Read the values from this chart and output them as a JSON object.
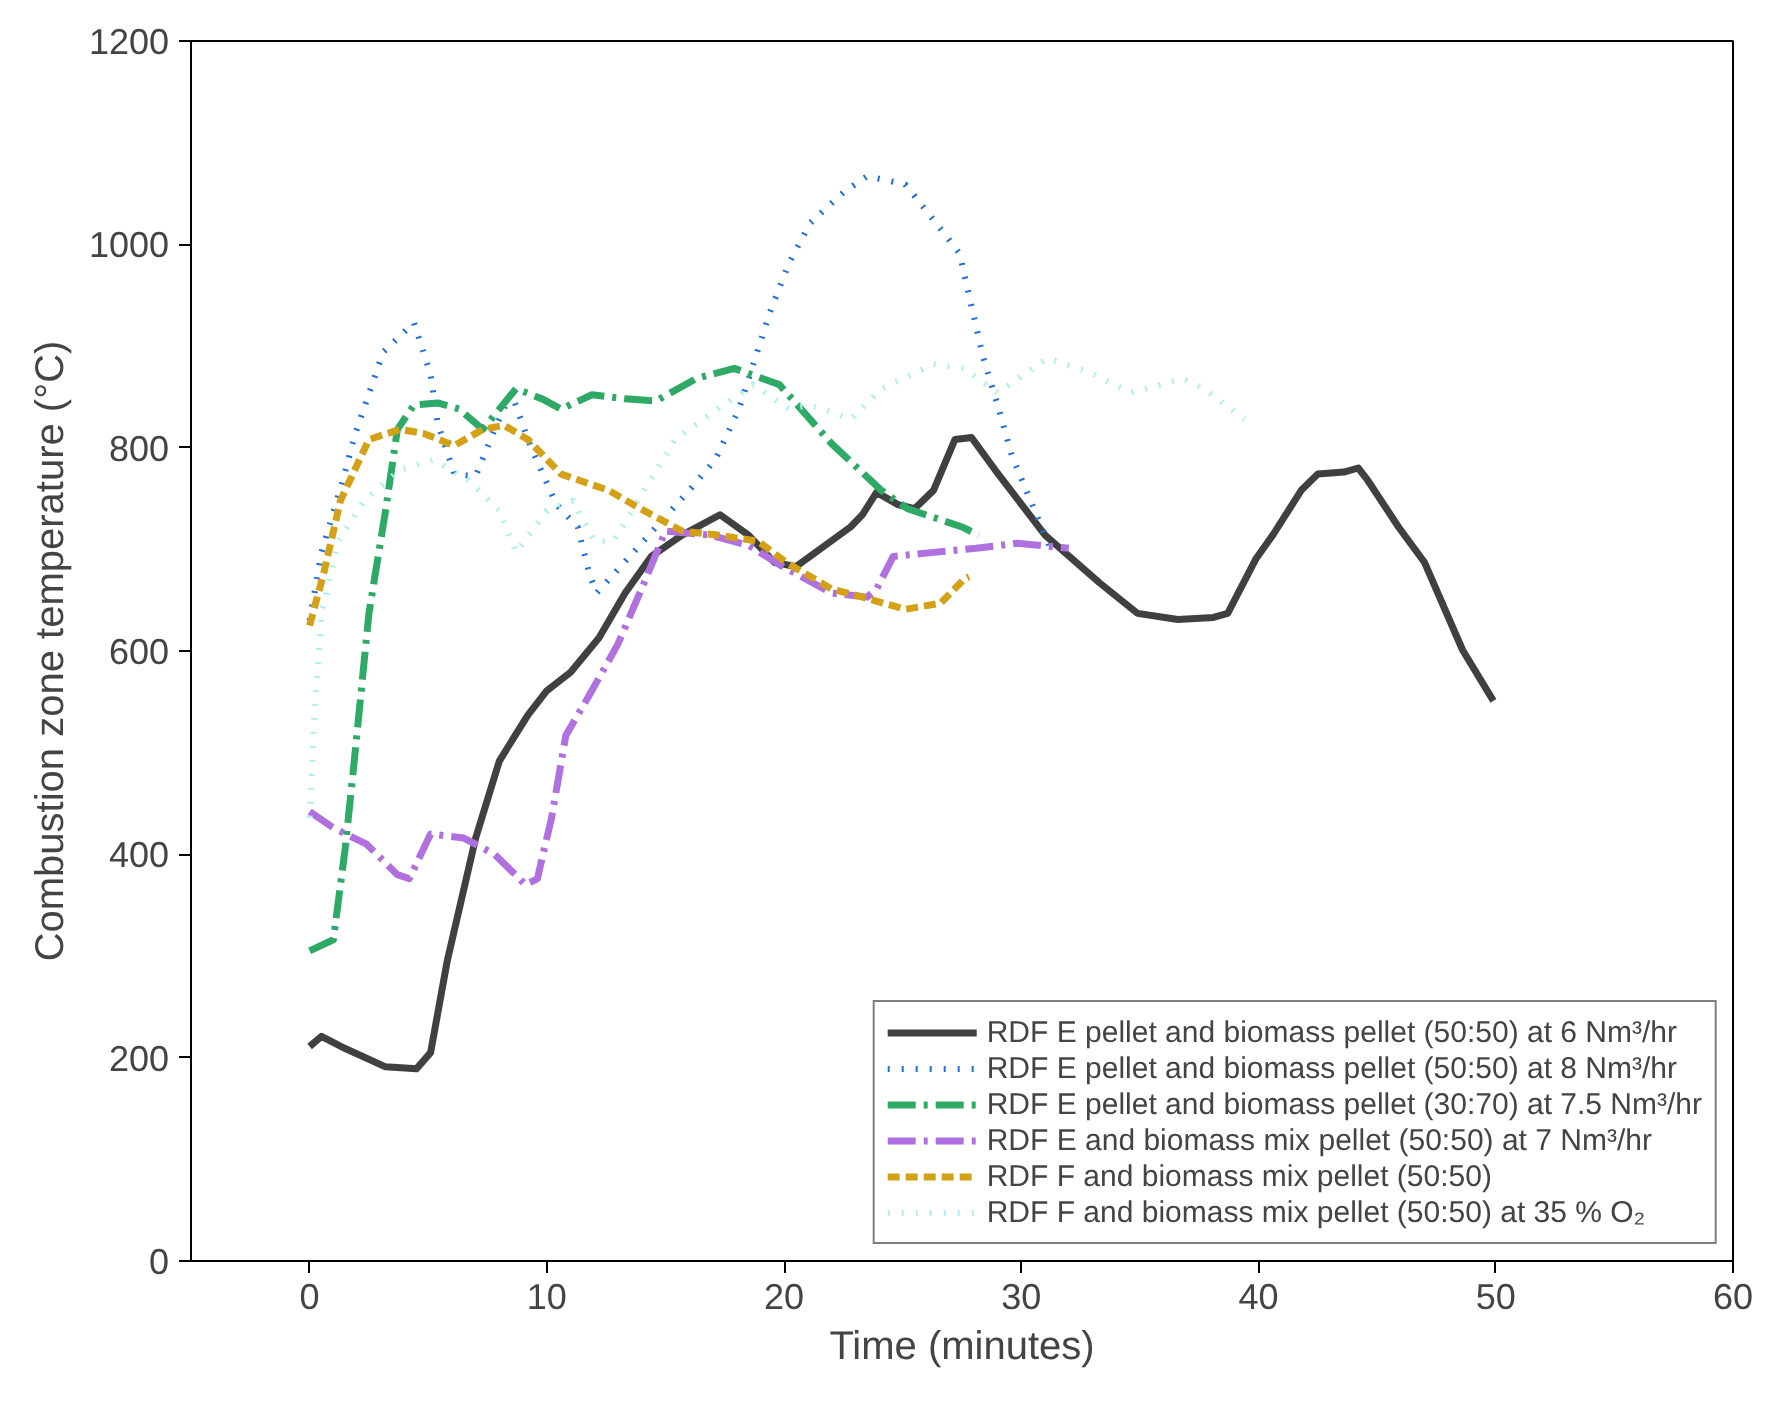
{
  "chart_data": {
    "type": "line",
    "xlabel": "Time (minutes)",
    "ylabel": "Combustion zone temperature (°C)",
    "xlim": [
      -5,
      60
    ],
    "ylim": [
      0,
      1200
    ],
    "xticks": [
      0,
      10,
      20,
      30,
      40,
      50,
      60
    ],
    "yticks": [
      0,
      200,
      400,
      600,
      800,
      1000,
      1200
    ],
    "grid": false,
    "legend": "bottom right",
    "marker": "none",
    "series": [
      {
        "name": "RDF E pellet and biomass pellet (50:50) at 6 Nm³/hr",
        "color": "#404040",
        "line_style": "solid",
        "x": [
          0,
          0.5,
          1.5,
          3.2,
          4.5,
          5.1,
          5.8,
          7,
          8,
          9.2,
          10,
          11,
          12.2,
          13.3,
          14.4,
          15.7,
          17.3,
          18.5,
          19.6,
          20.5,
          22.8,
          23.3,
          23.9,
          24.8,
          25.5,
          26.3,
          27.2,
          27.9,
          28.9,
          31,
          33.3,
          34.9,
          36.6,
          38.1,
          38.7,
          39.9,
          40.6,
          41.8,
          42.5,
          43.6,
          44.2,
          44.6,
          45.9,
          47,
          48.6,
          49.9
        ],
        "values": [
          211,
          221,
          209,
          191,
          189,
          205,
          295,
          416,
          492,
          537,
          561,
          579,
          613,
          657,
          693,
          714,
          734,
          714,
          687,
          683,
          722,
          734,
          756,
          744,
          740,
          758,
          808,
          810,
          778,
          714,
          667,
          637,
          631,
          633,
          637,
          691,
          714,
          758,
          774,
          776,
          780,
          768,
          722,
          687,
          601,
          551
        ]
      },
      {
        "name": "RDF E pellet and biomass pellet (50:50) at 8 Nm³/hr",
        "color": "#1f6fdd",
        "line_style": "dotted",
        "x": [
          0,
          0.5,
          1.4,
          1.9,
          3.1,
          4.4,
          5.1,
          5.4,
          6.1,
          7,
          7.8,
          8.5,
          9.3,
          10.4,
          11.3,
          11.8,
          12.1,
          16,
          17.1,
          18.1,
          19.4,
          20.2,
          21.1,
          22.5,
          23.5,
          25.1,
          26.2,
          27.4,
          27.9,
          28.4,
          29,
          29.6,
          31.3
        ],
        "values": [
          630,
          697,
          768,
          812,
          894,
          923,
          872,
          824,
          774,
          772,
          818,
          854,
          802,
          744,
          722,
          675,
          657,
          758,
          788,
          838,
          933,
          981,
          1021,
          1051,
          1067,
          1059,
          1027,
          991,
          939,
          888,
          842,
          792,
          697
        ]
      },
      {
        "name": "RDF E pellet and biomass pellet (30:70) at 7.5 Nm³/hr",
        "color": "#2eaa66",
        "line_style": "dashdot",
        "x": [
          0,
          1,
          1.5,
          1.9,
          2.5,
          3.2,
          3.7,
          4.4,
          5.4,
          6.3,
          7.3,
          8.7,
          9.8,
          10.6,
          11.9,
          13.3,
          14.6,
          16.3,
          17.9,
          19.8,
          22,
          24.1,
          25.2,
          27.5,
          28.2
        ],
        "values": [
          305,
          316,
          406,
          496,
          637,
          738,
          818,
          842,
          844,
          838,
          818,
          858,
          848,
          838,
          852,
          848,
          846,
          868,
          878,
          862,
          804,
          758,
          740,
          722,
          714
        ]
      },
      {
        "name": "RDF E and biomass mix pellet (50:50) at 7 Nm³/hr",
        "color": "#b070e0",
        "line_style": "dashdot",
        "x": [
          0,
          1,
          2.4,
          3.7,
          4.2,
          5.1,
          6.5,
          7.8,
          9.1,
          9.6,
          10.2,
          10.8,
          11.8,
          13,
          14.1,
          15,
          16.9,
          18.5,
          19.8,
          22,
          23.5,
          23.9,
          24.6,
          26.3,
          28.1,
          29.8,
          32
        ],
        "values": [
          442,
          426,
          410,
          380,
          376,
          420,
          416,
          400,
          370,
          376,
          436,
          517,
          557,
          607,
          667,
          718,
          714,
          704,
          685,
          657,
          653,
          661,
          693,
          697,
          701,
          706,
          701
        ]
      },
      {
        "name": "RDF F and biomass mix pellet (50:50)",
        "color": "#d4a017",
        "line_style": "dashed",
        "x": [
          0,
          0.6,
          1.3,
          1.9,
          2.5,
          3.8,
          4.8,
          6.1,
          7.3,
          8.2,
          9.2,
          10.6,
          12.6,
          14.1,
          15.7,
          17.2,
          18.9,
          20.1,
          22,
          23.3,
          25.1,
          26.6,
          27.6,
          27.8
        ],
        "values": [
          625,
          677,
          748,
          778,
          808,
          818,
          814,
          802,
          818,
          822,
          808,
          774,
          758,
          738,
          718,
          714,
          708,
          687,
          661,
          653,
          641,
          647,
          671,
          673
        ]
      },
      {
        "name": "RDF F and biomass mix pellet (50:50) at 35 % O₂",
        "color": "#aef0ee",
        "line_style": "dotted",
        "x": [
          0,
          0.2,
          0.5,
          1.2,
          2.3,
          3.8,
          5.2,
          6.7,
          8,
          8.7,
          10,
          11.1,
          12,
          12.8,
          14.1,
          15.4,
          17.2,
          18.7,
          20.2,
          21.1,
          22.8,
          24.1,
          26.3,
          27.6,
          29,
          31.1,
          32.9,
          34.6,
          36.8,
          37.7,
          39.4
        ],
        "values": [
          436,
          537,
          637,
          708,
          748,
          778,
          788,
          768,
          738,
          697,
          738,
          748,
          708,
          708,
          758,
          808,
          838,
          862,
          838,
          842,
          828,
          858,
          882,
          878,
          854,
          888,
          874,
          854,
          868,
          858,
          828
        ]
      }
    ]
  }
}
